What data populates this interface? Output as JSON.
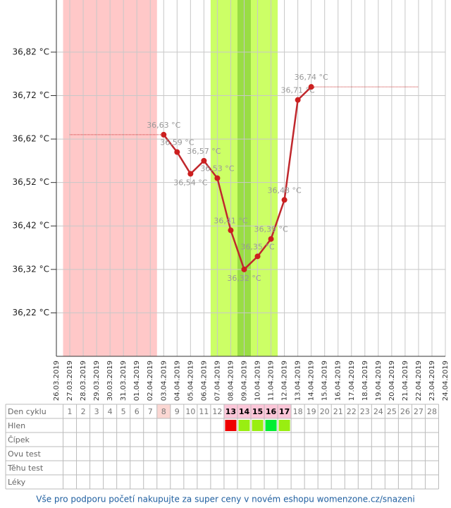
{
  "chart_data": {
    "type": "line",
    "categories": [
      "26.03.2019",
      "27.03.2019",
      "28.03.2019",
      "29.03.2019",
      "30.03.2019",
      "31.03.2019",
      "01.04.2019",
      "02.04.2019",
      "03.04.2019",
      "04.04.2019",
      "05.04.2019",
      "06.04.2019",
      "07.04.2019",
      "08.04.2019",
      "09.04.2019",
      "10.04.2019",
      "11.04.2019",
      "12.04.2019",
      "13.04.2019",
      "14.04.2019",
      "15.04.2019",
      "16.04.2019",
      "17.04.2019",
      "18.04.2019",
      "19.04.2019",
      "20.04.2019",
      "21.04.2019",
      "22.04.2019",
      "23.04.2019",
      "24.04.2019"
    ],
    "series": [
      {
        "color": "#c0282d",
        "values": [
          null,
          null,
          null,
          null,
          null,
          null,
          null,
          null,
          36.63,
          36.59,
          36.54,
          36.57,
          36.53,
          36.41,
          36.32,
          36.35,
          36.39,
          36.48,
          36.71,
          36.74,
          null,
          null,
          null,
          null,
          null,
          null,
          null,
          null,
          null,
          null
        ],
        "value_labels": [
          null,
          null,
          null,
          null,
          null,
          null,
          null,
          null,
          "36,63 °C",
          "36,59 °C",
          "36,54 °C",
          "36,57 °C",
          "36,53 °C",
          "36,41 °C",
          "36,32 °C",
          "36,35 °C",
          "36,39 °C",
          "36,48 °C",
          "36,71 °C",
          "36,74 °C",
          null,
          null,
          null,
          null,
          null,
          null,
          null,
          null,
          null,
          null
        ]
      },
      {
        "color": "#cc3333",
        "values": [
          null,
          36.63,
          36.63,
          36.63,
          36.63,
          36.63,
          36.63,
          36.63,
          36.63,
          null,
          null,
          null,
          null,
          null,
          null,
          null,
          null,
          null,
          null,
          null,
          null,
          null,
          null,
          null,
          null,
          null,
          null,
          null,
          null,
          null
        ]
      },
      {
        "color": "#cc3333",
        "values": [
          null,
          null,
          null,
          null,
          null,
          null,
          null,
          null,
          null,
          null,
          null,
          null,
          null,
          null,
          null,
          null,
          null,
          null,
          null,
          36.74,
          36.74,
          36.74,
          36.74,
          36.74,
          36.74,
          36.74,
          36.74,
          36.74,
          null,
          null
        ]
      }
    ],
    "ylim": [
      36.12,
      36.94
    ],
    "yticks": [
      {
        "value": 36.22,
        "label": "36,22 °C"
      },
      {
        "value": 36.32,
        "label": "36,32 °C"
      },
      {
        "value": 36.42,
        "label": "36,42 °C"
      },
      {
        "value": 36.52,
        "label": "36,52 °C"
      },
      {
        "value": 36.62,
        "label": "36,62 °C"
      },
      {
        "value": 36.72,
        "label": "36,72 °C"
      },
      {
        "value": 36.82,
        "label": "36,82 °C"
      }
    ],
    "grid": true,
    "shading": [
      {
        "from": "27.03.2019",
        "to": "02.04.2019",
        "color": "#ffc8c8"
      },
      {
        "from": "07.04.2019",
        "to": "11.04.2019",
        "color": "#ccff66"
      },
      {
        "from": "09.04.2019",
        "to": "09.04.2019",
        "color": "#99dd44"
      }
    ]
  },
  "cycle_table": {
    "row_labels": [
      "Den cyklu",
      "Hlen",
      "Čípek",
      "Ovu test",
      "Těhu test",
      "Léky"
    ],
    "days": [
      1,
      2,
      3,
      4,
      5,
      6,
      7,
      8,
      9,
      10,
      11,
      12,
      13,
      14,
      15,
      16,
      17,
      18,
      19,
      20,
      21,
      22,
      23,
      24,
      25,
      26,
      27,
      28
    ],
    "day_highlights": [
      {
        "day": 8,
        "color": "#fbd7d3"
      },
      {
        "day": 13,
        "color": "#fcc6d8"
      },
      {
        "day": 14,
        "color": "#fcc6d8"
      },
      {
        "day": 15,
        "color": "#fcc6d8"
      },
      {
        "day": 16,
        "color": "#fcc6d8"
      },
      {
        "day": 17,
        "color": "#fcc6d8"
      }
    ],
    "hlen": [
      {
        "day": 13,
        "color": "#ee0000"
      },
      {
        "day": 14,
        "color": "#99ee11"
      },
      {
        "day": 15,
        "color": "#99ee11"
      },
      {
        "day": 16,
        "color": "#00ee33"
      },
      {
        "day": 17,
        "color": "#99ee11"
      }
    ]
  },
  "footer": "Vše pro podporu početí nakupujte za super ceny v novém eshopu womenzone.cz/snazeni"
}
